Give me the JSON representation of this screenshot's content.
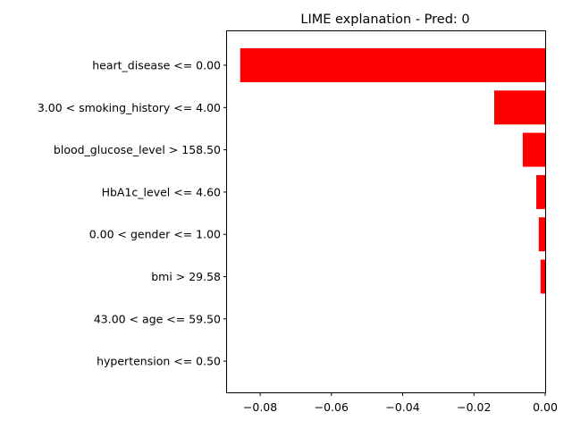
{
  "chart_data": {
    "type": "bar",
    "orientation": "horizontal",
    "title": "LIME explanation - Pred: 0",
    "xlabel": "",
    "ylabel": "",
    "categories": [
      "heart_disease <= 0.00",
      "3.00 < smoking_history <= 4.00",
      "blood_glucose_level > 158.50",
      "HbA1c_level <= 4.60",
      "0.00 < gender <= 1.00",
      "bmi > 29.58",
      "43.00 < age <= 59.50",
      "hypertension <= 0.50"
    ],
    "values": [
      -0.0856,
      -0.0143,
      -0.0063,
      -0.0025,
      -0.0018,
      -0.0013,
      0.0,
      0.0
    ],
    "xlim": [
      -0.0893,
      0.0
    ],
    "xticks": [
      -0.08,
      -0.06,
      -0.04,
      -0.02,
      0.0
    ],
    "xtick_labels": [
      "−0.08",
      "−0.06",
      "−0.04",
      "−0.02",
      "0.00"
    ],
    "bar_color": "#ff0000",
    "grid": false
  }
}
